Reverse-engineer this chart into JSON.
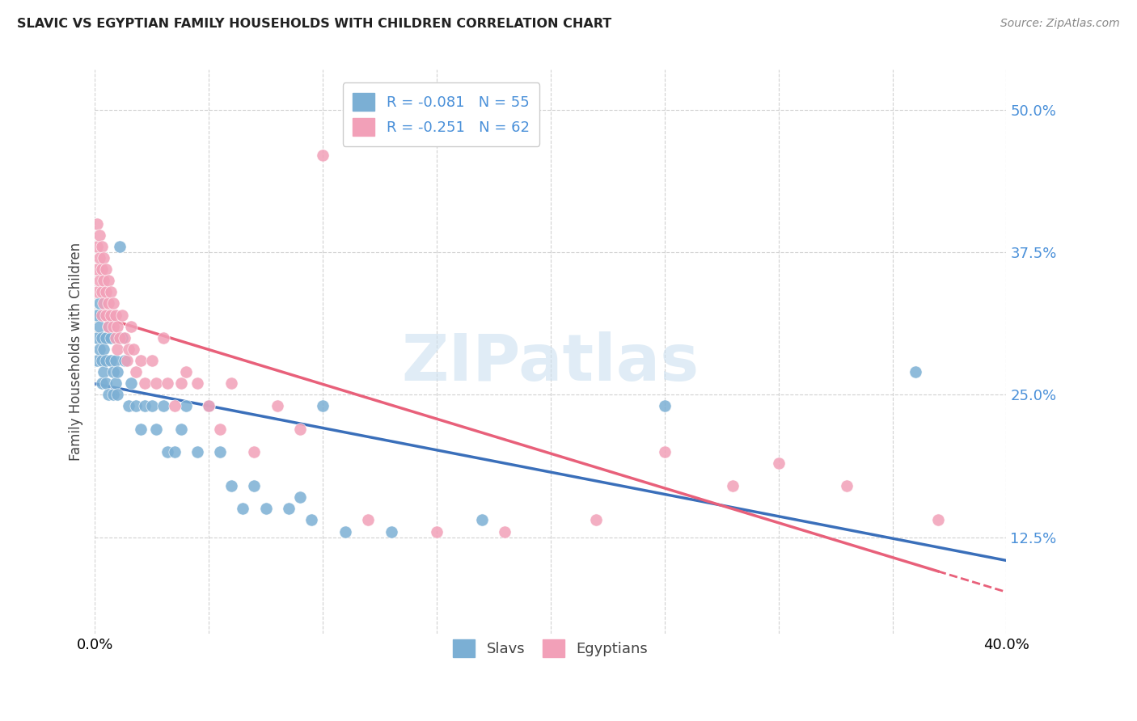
{
  "title": "SLAVIC VS EGYPTIAN FAMILY HOUSEHOLDS WITH CHILDREN CORRELATION CHART",
  "source": "Source: ZipAtlas.com",
  "ylabel": "Family Households with Children",
  "xlim": [
    0.0,
    0.4
  ],
  "ylim": [
    0.04,
    0.535
  ],
  "yticks": [
    0.125,
    0.25,
    0.375,
    0.5
  ],
  "ytick_labels": [
    "12.5%",
    "25.0%",
    "37.5%",
    "50.0%"
  ],
  "xticks": [
    0.0,
    0.05,
    0.1,
    0.15,
    0.2,
    0.25,
    0.3,
    0.35,
    0.4
  ],
  "slavs_color": "#7bafd4",
  "egyptians_color": "#f2a0b8",
  "slavs_line_color": "#3a6fba",
  "egyptians_line_color": "#e8607a",
  "watermark_text": "ZIPatlas",
  "background_color": "#ffffff",
  "legend_slavs_label": "R = -0.081   N = 55",
  "legend_egyptians_label": "R = -0.251   N = 62",
  "slavs_x": [
    0.001,
    0.001,
    0.001,
    0.002,
    0.002,
    0.002,
    0.003,
    0.003,
    0.003,
    0.004,
    0.004,
    0.005,
    0.005,
    0.005,
    0.006,
    0.006,
    0.007,
    0.007,
    0.008,
    0.008,
    0.009,
    0.009,
    0.01,
    0.01,
    0.011,
    0.012,
    0.013,
    0.015,
    0.016,
    0.018,
    0.02,
    0.022,
    0.025,
    0.027,
    0.03,
    0.032,
    0.035,
    0.038,
    0.04,
    0.045,
    0.05,
    0.055,
    0.06,
    0.065,
    0.07,
    0.075,
    0.085,
    0.09,
    0.095,
    0.1,
    0.11,
    0.13,
    0.17,
    0.25,
    0.36
  ],
  "slavs_y": [
    0.3,
    0.28,
    0.32,
    0.31,
    0.29,
    0.33,
    0.28,
    0.26,
    0.3,
    0.27,
    0.29,
    0.3,
    0.28,
    0.26,
    0.31,
    0.25,
    0.28,
    0.3,
    0.27,
    0.25,
    0.28,
    0.26,
    0.27,
    0.25,
    0.38,
    0.3,
    0.28,
    0.24,
    0.26,
    0.24,
    0.22,
    0.24,
    0.24,
    0.22,
    0.24,
    0.2,
    0.2,
    0.22,
    0.24,
    0.2,
    0.24,
    0.2,
    0.17,
    0.15,
    0.17,
    0.15,
    0.15,
    0.16,
    0.14,
    0.24,
    0.13,
    0.13,
    0.14,
    0.24,
    0.27
  ],
  "egyptians_x": [
    0.001,
    0.001,
    0.001,
    0.001,
    0.002,
    0.002,
    0.002,
    0.003,
    0.003,
    0.003,
    0.003,
    0.004,
    0.004,
    0.004,
    0.005,
    0.005,
    0.005,
    0.006,
    0.006,
    0.006,
    0.007,
    0.007,
    0.008,
    0.008,
    0.009,
    0.009,
    0.01,
    0.01,
    0.011,
    0.012,
    0.013,
    0.014,
    0.015,
    0.016,
    0.017,
    0.018,
    0.02,
    0.022,
    0.025,
    0.027,
    0.03,
    0.032,
    0.035,
    0.038,
    0.04,
    0.045,
    0.05,
    0.055,
    0.06,
    0.07,
    0.08,
    0.09,
    0.1,
    0.12,
    0.15,
    0.18,
    0.22,
    0.25,
    0.28,
    0.3,
    0.33,
    0.37
  ],
  "egyptians_y": [
    0.36,
    0.34,
    0.38,
    0.4,
    0.35,
    0.37,
    0.39,
    0.36,
    0.34,
    0.38,
    0.32,
    0.35,
    0.33,
    0.37,
    0.34,
    0.36,
    0.32,
    0.33,
    0.35,
    0.31,
    0.34,
    0.32,
    0.33,
    0.31,
    0.32,
    0.3,
    0.31,
    0.29,
    0.3,
    0.32,
    0.3,
    0.28,
    0.29,
    0.31,
    0.29,
    0.27,
    0.28,
    0.26,
    0.28,
    0.26,
    0.3,
    0.26,
    0.24,
    0.26,
    0.27,
    0.26,
    0.24,
    0.22,
    0.26,
    0.2,
    0.24,
    0.22,
    0.46,
    0.14,
    0.13,
    0.13,
    0.14,
    0.2,
    0.17,
    0.19,
    0.17,
    0.14
  ]
}
